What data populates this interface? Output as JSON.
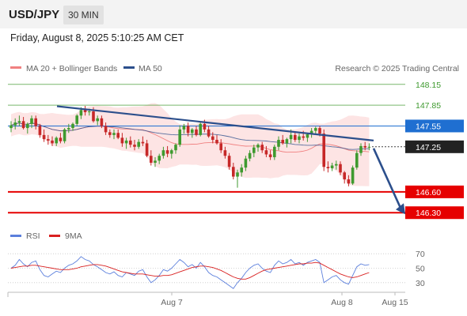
{
  "header": {
    "symbol": "USD/JPY",
    "timeframe": "30 MIN",
    "datetime": "Friday, August 8, 2025 5:10:25 AM CET"
  },
  "legend": {
    "ma20_label": "MA 20 + Bollinger Bands",
    "ma50_label": "MA 50",
    "credit": "Research © 2025 Trading Central",
    "rsi_label": "RSI",
    "ma9_label": "9MA"
  },
  "colors": {
    "ma20": "#f08080",
    "ma50": "#2c4f8c",
    "band_fill": "#fde4e4",
    "up_candle": "#3f9a2f",
    "down_candle": "#c62828",
    "trendline": "#2c4f8c",
    "resistance_green": "#3f9a2f",
    "pivot_blue": "#1f6fd1",
    "support_red": "#e60000",
    "rsi": "#5b7fdc",
    "rsi_ma": "#d92020"
  },
  "chart_data": [
    {
      "type": "candlestick",
      "title": "USD/JPY",
      "timeframe": "30 MIN",
      "x_ticks": [
        "Aug 7",
        "Aug 8",
        "Aug 15"
      ],
      "ylim": [
        146.2,
        148.25
      ],
      "levels": [
        {
          "value": 148.15,
          "label": "148.15",
          "kind": "resistance"
        },
        {
          "value": 147.85,
          "label": "147.85",
          "kind": "resistance"
        },
        {
          "value": 147.55,
          "label": "147.55",
          "kind": "pivot"
        },
        {
          "value": 147.25,
          "label": "147.25",
          "kind": "last"
        },
        {
          "value": 146.6,
          "label": "146.60",
          "kind": "support"
        },
        {
          "value": 146.3,
          "label": "146.30",
          "kind": "support"
        }
      ],
      "trendline": {
        "from": {
          "index": 0,
          "value": 147.88
        },
        "to": {
          "index": 95,
          "value": 147.5
        }
      },
      "forecast_arrow": {
        "from": 147.25,
        "to": 146.3
      },
      "candles_ohlc": [
        [
          147.52,
          147.62,
          147.46,
          147.56
        ],
        [
          147.56,
          147.66,
          147.5,
          147.6
        ],
        [
          147.6,
          147.7,
          147.55,
          147.62
        ],
        [
          147.62,
          147.68,
          147.5,
          147.52
        ],
        [
          147.52,
          147.6,
          147.44,
          147.58
        ],
        [
          147.58,
          147.7,
          147.52,
          147.66
        ],
        [
          147.66,
          147.7,
          147.5,
          147.55
        ],
        [
          147.55,
          147.58,
          147.38,
          147.42
        ],
        [
          147.42,
          147.5,
          147.32,
          147.36
        ],
        [
          147.36,
          147.42,
          147.28,
          147.34
        ],
        [
          147.34,
          147.4,
          147.26,
          147.3
        ],
        [
          147.3,
          147.4,
          147.26,
          147.38
        ],
        [
          147.38,
          147.45,
          147.3,
          147.33
        ],
        [
          147.33,
          147.52,
          147.3,
          147.5
        ],
        [
          147.5,
          147.58,
          147.45,
          147.52
        ],
        [
          147.52,
          147.6,
          147.48,
          147.58
        ],
        [
          147.58,
          147.72,
          147.55,
          147.7
        ],
        [
          147.7,
          147.82,
          147.65,
          147.78
        ],
        [
          147.78,
          147.84,
          147.7,
          147.75
        ],
        [
          147.75,
          147.8,
          147.7,
          147.76
        ],
        [
          147.76,
          147.82,
          147.6,
          147.62
        ],
        [
          147.62,
          147.7,
          147.56,
          147.66
        ],
        [
          147.66,
          147.7,
          147.52,
          147.55
        ],
        [
          147.55,
          147.6,
          147.42,
          147.46
        ],
        [
          147.46,
          147.5,
          147.38,
          147.42
        ],
        [
          147.42,
          147.5,
          147.36,
          147.45
        ],
        [
          147.45,
          147.5,
          147.36,
          147.38
        ],
        [
          147.38,
          147.45,
          147.25,
          147.3
        ],
        [
          147.3,
          147.38,
          147.22,
          147.34
        ],
        [
          147.34,
          147.4,
          147.24,
          147.28
        ],
        [
          147.28,
          147.35,
          147.2,
          147.25
        ],
        [
          147.25,
          147.36,
          147.22,
          147.32
        ],
        [
          147.32,
          147.4,
          147.26,
          147.3
        ],
        [
          147.3,
          147.35,
          147.1,
          147.12
        ],
        [
          147.12,
          147.2,
          146.98,
          147.02
        ],
        [
          147.02,
          147.1,
          146.96,
          147.05
        ],
        [
          147.05,
          147.15,
          147.0,
          147.12
        ],
        [
          147.12,
          147.25,
          147.08,
          147.2
        ],
        [
          147.2,
          147.26,
          147.1,
          147.15
        ],
        [
          147.15,
          147.22,
          147.08,
          147.2
        ],
        [
          147.2,
          147.3,
          147.15,
          147.28
        ],
        [
          147.28,
          147.56,
          147.25,
          147.5
        ],
        [
          147.5,
          147.58,
          147.44,
          147.55
        ],
        [
          147.55,
          147.6,
          147.4,
          147.45
        ],
        [
          147.45,
          147.52,
          147.38,
          147.5
        ],
        [
          147.5,
          147.55,
          147.4,
          147.42
        ],
        [
          147.42,
          147.6,
          147.4,
          147.58
        ],
        [
          147.58,
          147.64,
          147.46,
          147.5
        ],
        [
          147.5,
          147.55,
          147.38,
          147.4
        ],
        [
          147.4,
          147.46,
          147.3,
          147.35
        ],
        [
          147.35,
          147.42,
          147.28,
          147.3
        ],
        [
          147.3,
          147.36,
          147.16,
          147.2
        ],
        [
          147.2,
          147.25,
          147.08,
          147.12
        ],
        [
          147.12,
          147.16,
          146.92,
          146.96
        ],
        [
          146.96,
          147.02,
          146.78,
          146.82
        ],
        [
          146.82,
          146.92,
          146.66,
          146.88
        ],
        [
          146.88,
          147.0,
          146.82,
          146.95
        ],
        [
          146.95,
          147.12,
          146.9,
          147.08
        ],
        [
          147.08,
          147.2,
          147.04,
          147.16
        ],
        [
          147.16,
          147.28,
          147.1,
          147.24
        ],
        [
          147.24,
          147.3,
          147.18,
          147.28
        ],
        [
          147.28,
          147.32,
          147.16,
          147.2
        ],
        [
          147.2,
          147.26,
          147.1,
          147.14
        ],
        [
          147.14,
          147.2,
          147.06,
          147.1
        ],
        [
          147.1,
          147.28,
          147.06,
          147.25
        ],
        [
          147.25,
          147.4,
          147.2,
          147.35
        ],
        [
          147.35,
          147.42,
          147.28,
          147.3
        ],
        [
          147.3,
          147.38,
          147.24,
          147.36
        ],
        [
          147.36,
          147.5,
          147.3,
          147.42
        ],
        [
          147.42,
          147.46,
          147.32,
          147.35
        ],
        [
          147.35,
          147.44,
          147.3,
          147.4
        ],
        [
          147.4,
          147.48,
          147.34,
          147.38
        ],
        [
          147.38,
          147.45,
          147.32,
          147.43
        ],
        [
          147.43,
          147.52,
          147.38,
          147.48
        ],
        [
          147.48,
          147.54,
          147.44,
          147.52
        ],
        [
          147.52,
          147.55,
          147.4,
          147.44
        ],
        [
          147.44,
          147.5,
          146.9,
          146.96
        ],
        [
          146.96,
          147.04,
          146.88,
          146.94
        ],
        [
          146.94,
          147.02,
          146.9,
          146.98
        ],
        [
          146.98,
          147.05,
          146.92,
          147.0
        ],
        [
          147.0,
          147.04,
          146.84,
          146.88
        ],
        [
          146.88,
          146.9,
          146.72,
          146.78
        ],
        [
          146.78,
          146.84,
          146.68,
          146.72
        ],
        [
          146.72,
          146.98,
          146.7,
          146.95
        ],
        [
          146.95,
          147.2,
          146.92,
          147.16
        ],
        [
          147.16,
          147.3,
          147.12,
          147.26
        ],
        [
          147.26,
          147.32,
          147.2,
          147.24
        ],
        [
          147.24,
          147.3,
          147.2,
          147.25
        ]
      ]
    },
    {
      "type": "line",
      "title": "RSI",
      "x_ticks": [
        "Aug 7",
        "Aug 8",
        "Aug 15"
      ],
      "ylim": [
        20,
        80
      ],
      "y_ticks": [
        70,
        50,
        30
      ],
      "series": [
        {
          "name": "RSI",
          "values": [
            50,
            54,
            62,
            56,
            52,
            58,
            60,
            48,
            40,
            38,
            42,
            46,
            44,
            50,
            54,
            56,
            60,
            66,
            62,
            60,
            55,
            52,
            48,
            44,
            42,
            45,
            40,
            38,
            44,
            42,
            40,
            46,
            48,
            38,
            30,
            34,
            40,
            48,
            46,
            50,
            56,
            62,
            58,
            52,
            55,
            50,
            58,
            52,
            44,
            40,
            38,
            34,
            30,
            26,
            22,
            30,
            36,
            44,
            50,
            54,
            56,
            50,
            46,
            44,
            54,
            60,
            56,
            58,
            62,
            56,
            58,
            54,
            58,
            60,
            62,
            58,
            30,
            34,
            38,
            40,
            34,
            30,
            28,
            40,
            52,
            56,
            54,
            55
          ]
        },
        {
          "name": "9MA",
          "values": [
            50,
            51,
            52,
            53,
            53,
            54,
            54,
            53,
            52,
            51,
            50,
            49,
            48,
            48,
            48,
            49,
            50,
            52,
            53,
            54,
            55,
            55,
            54,
            53,
            51,
            49,
            47,
            45,
            44,
            43,
            42,
            42,
            42,
            41,
            40,
            39,
            39,
            40,
            40,
            41,
            43,
            45,
            47,
            49,
            51,
            52,
            53,
            53,
            52,
            51,
            49,
            47,
            44,
            41,
            38,
            36,
            35,
            35,
            37,
            40,
            43,
            46,
            48,
            49,
            50,
            51,
            52,
            53,
            54,
            55,
            56,
            56,
            57,
            57,
            58,
            57,
            54,
            51,
            48,
            45,
            42,
            40,
            38,
            37,
            38,
            40,
            42,
            44
          ]
        }
      ]
    }
  ]
}
